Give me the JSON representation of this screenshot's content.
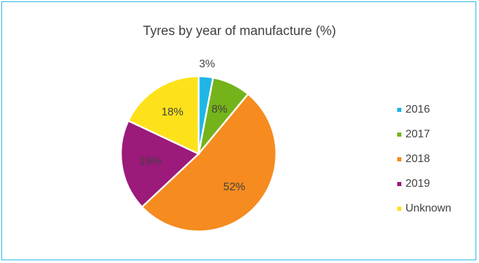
{
  "chart_data": {
    "type": "pie",
    "title": "Tyres by year of manufacture (%)",
    "legend_position": "right",
    "slices": [
      {
        "name": "2016",
        "value": 3,
        "label": "3%",
        "color": "#1fb6e6"
      },
      {
        "name": "2017",
        "value": 8,
        "label": "8%",
        "color": "#75b31b"
      },
      {
        "name": "2018",
        "value": 52,
        "label": "52%",
        "color": "#f68b1f"
      },
      {
        "name": "2019",
        "value": 19,
        "label": "19%",
        "color": "#9b1a7a"
      },
      {
        "name": "Unknown",
        "value": 18,
        "label": "18%",
        "color": "#fde21b"
      }
    ]
  }
}
